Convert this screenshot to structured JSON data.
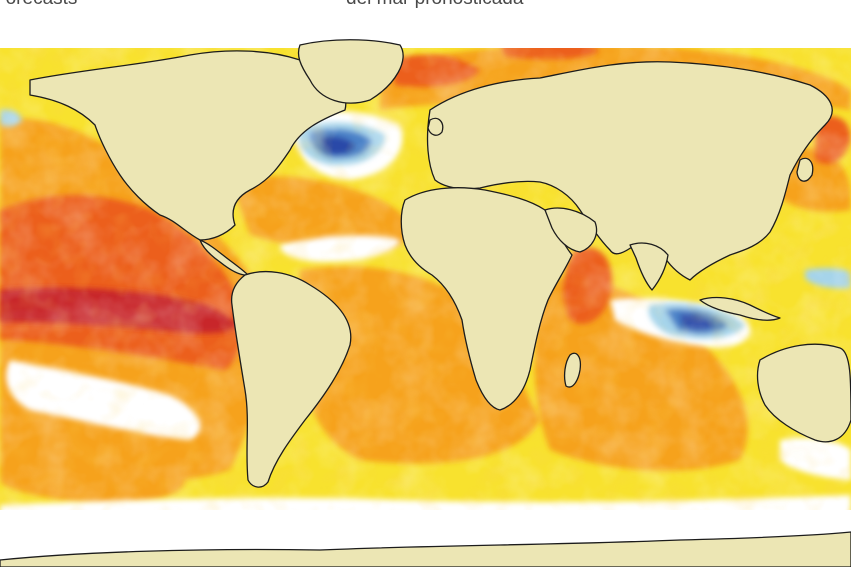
{
  "caption": {
    "left": "Forecasts",
    "center": "del mar pronosticada"
  },
  "map": {
    "projection": "world-robinson",
    "subject": "forecast sea surface temperature anomaly",
    "palette": {
      "land": "#ece6b4",
      "coastline": "#1c1c1c",
      "ocean_neutral": "#ffffff",
      "anomaly_weak_warm": "#f8e22e",
      "anomaly_warm": "#f6a21a",
      "anomaly_strong_warm": "#ec5e1e",
      "anomaly_very_strong_warm": "#c8282a",
      "anomaly_weak_cold": "#a6d4ea",
      "anomaly_cold": "#4c82c8",
      "anomaly_strong_cold": "#2a4aa8"
    }
  }
}
